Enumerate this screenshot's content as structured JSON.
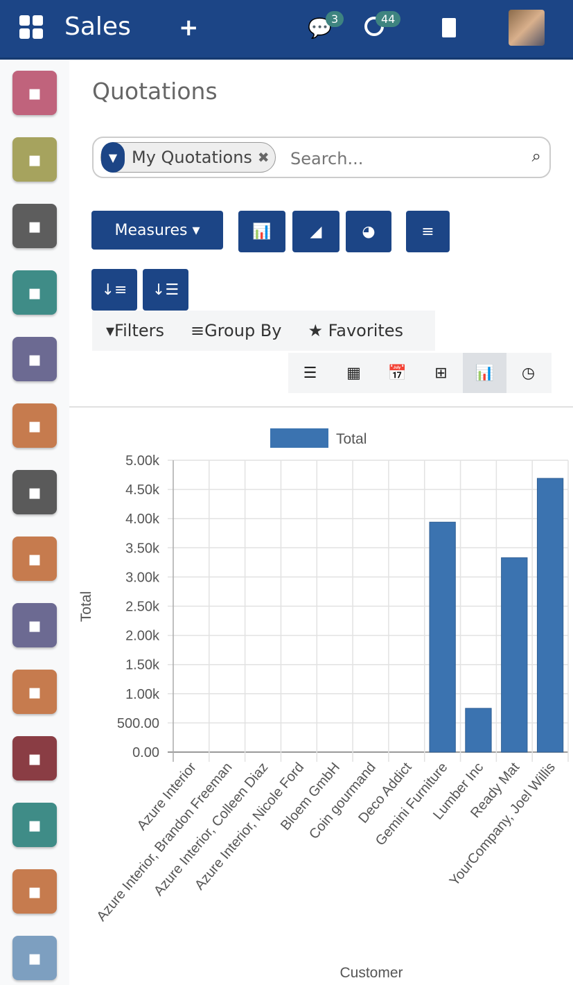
{
  "topbar": {
    "app": "Sales",
    "messages_count": "3",
    "activities_count": "44"
  },
  "sidebar": {
    "apps": [
      {
        "icon": "discuss-icon",
        "color": "#c0637c"
      },
      {
        "icon": "calendar-icon",
        "color": "#a6a35e"
      },
      {
        "icon": "notes-icon",
        "color": "#5d5d5d"
      },
      {
        "icon": "contacts-icon",
        "color": "#3f8c87"
      },
      {
        "icon": "crm-handshake-icon",
        "color": "#6c6a92"
      },
      {
        "icon": "sales-chart-icon",
        "color": "#c67b4e"
      },
      {
        "icon": "store-icon",
        "color": "#5a5a5a"
      },
      {
        "icon": "invoice-icon",
        "color": "#c67b4e"
      },
      {
        "icon": "puzzle-icon",
        "color": "#6c6a92"
      },
      {
        "icon": "globe-icon",
        "color": "#c67b4e"
      },
      {
        "icon": "elearning-icon",
        "color": "#8a3d44"
      },
      {
        "icon": "tag-icon",
        "color": "#3f8c87"
      },
      {
        "icon": "survey-icon",
        "color": "#c67b4e"
      },
      {
        "icon": "card-icon",
        "color": "#7d9fc0"
      }
    ]
  },
  "page": {
    "title": "Quotations"
  },
  "search": {
    "facet": "My Quotations",
    "placeholder": "Search..."
  },
  "toolbar": {
    "measures": "Measures"
  },
  "filters": {
    "filters": "Filters",
    "group_by": "Group By",
    "favorites": "Favorites"
  },
  "chart_data": {
    "type": "bar",
    "legend": [
      "Total"
    ],
    "legend_placement": "top",
    "xlabel": "Customer",
    "ylabel": "Total",
    "categories": [
      "Azure Interior",
      "Azure Interior, Brandon Freeman",
      "Azure Interior, Colleen Diaz",
      "Azure Interior, Nicole Ford",
      "Bloem GmbH",
      "Coin gourmand",
      "Deco Addict",
      "Gemini Furniture",
      "Lumber Inc",
      "Ready Mat",
      "YourCompany, Joel Willis"
    ],
    "series": [
      {
        "name": "Total",
        "values": [
          0,
          0,
          0,
          0,
          0,
          0,
          0,
          3940,
          750,
          3330,
          4690
        ]
      }
    ],
    "yticks": [
      "0.00",
      "500.00",
      "1.00k",
      "1.50k",
      "2.00k",
      "2.50k",
      "3.00k",
      "3.50k",
      "4.00k",
      "4.50k",
      "5.00k"
    ],
    "ylim": [
      0,
      5000
    ],
    "grid": true,
    "color": "#3b73b0"
  }
}
